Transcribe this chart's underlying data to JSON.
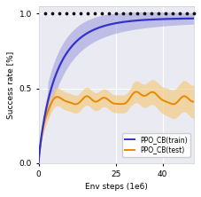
{
  "title": "",
  "xlabel": "Env steps (1e6)",
  "ylabel": "Success rate [%]",
  "xlim": [
    0,
    50
  ],
  "ylim": [
    0.0,
    1.05
  ],
  "yticks": [
    0.0,
    0.5,
    1.0
  ],
  "xtick_vals": [
    0,
    25,
    40
  ],
  "xtick_labels": [
    "0",
    "25",
    "40"
  ],
  "train_color": "#3333cc",
  "test_color": "#e88a00",
  "train_fill_color": "#9999dd",
  "test_fill_color": "#f5c97a",
  "dot_color": "#111111",
  "legend_train": "PPO_CB(train)",
  "legend_test": "PPO_CB(test)",
  "figsize": [
    2.28,
    2.22
  ],
  "dpi": 100
}
